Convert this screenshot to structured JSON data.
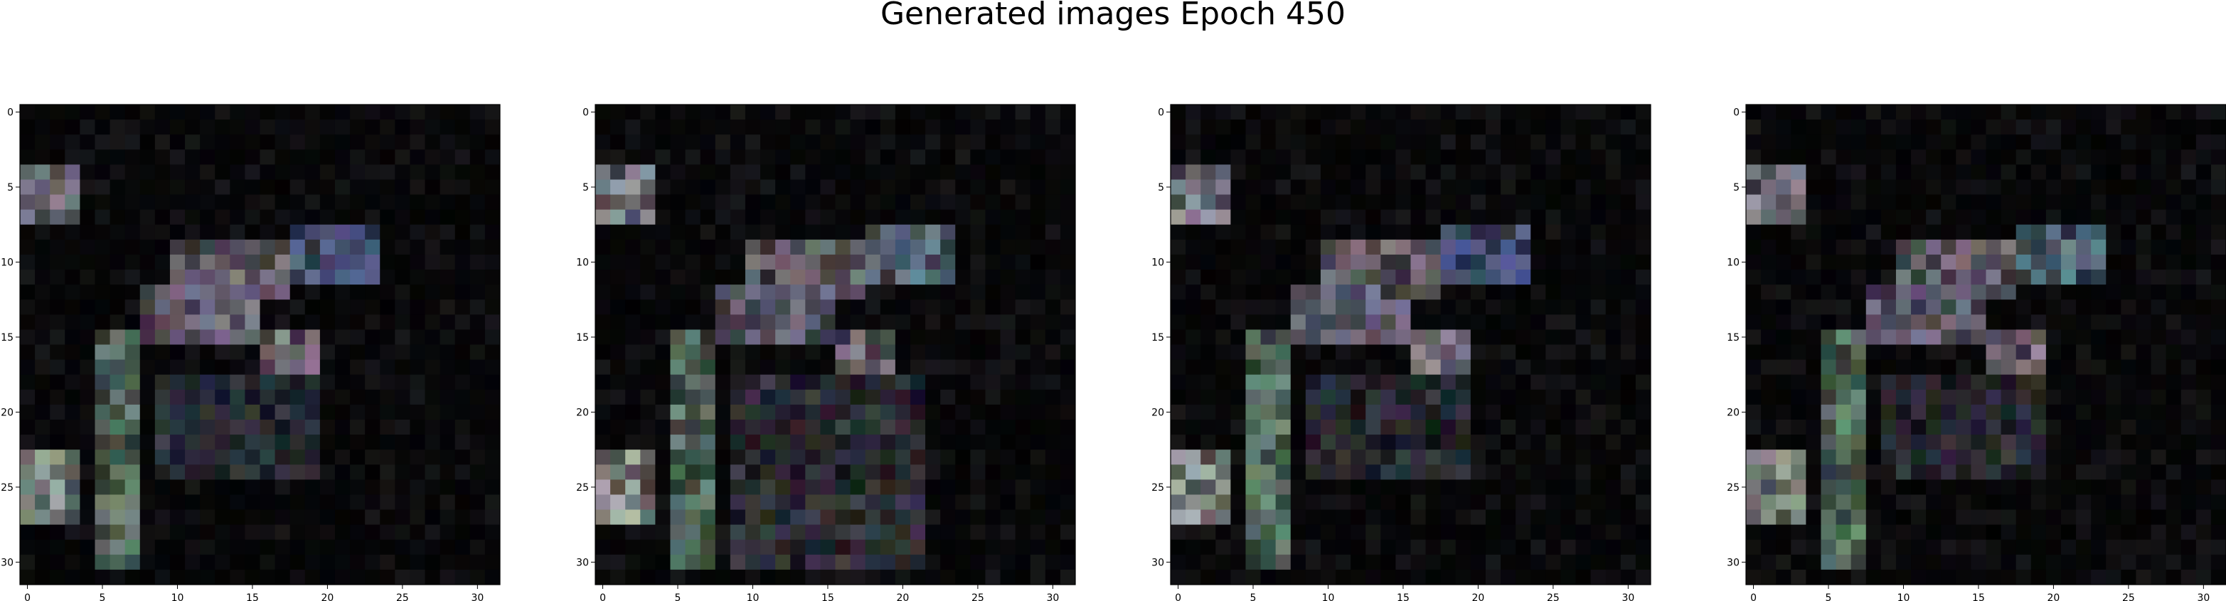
{
  "figure": {
    "title": "Generated images Epoch 450"
  },
  "colors": {
    "background": "#000000",
    "figure_background": "#ffffff",
    "axis": "#000000"
  },
  "chart_data": [
    {
      "type": "heatmap",
      "grid": [
        32,
        32
      ],
      "x_ticks": [
        "0",
        "5",
        "10",
        "15",
        "20",
        "25",
        "30"
      ],
      "y_ticks": [
        "0",
        "5",
        "10",
        "15",
        "20",
        "25",
        "30"
      ],
      "xlim": [
        -0.5,
        31.5
      ],
      "ylim": [
        31.5,
        -0.5
      ],
      "grid_lines": false,
      "bright_regions": [
        {
          "rows": [
            4,
            7
          ],
          "cols": [
            0,
            3
          ],
          "color": "#7d7a88"
        },
        {
          "rows": [
            9,
            12
          ],
          "cols": [
            10,
            17
          ],
          "color": "#6b6670"
        },
        {
          "rows": [
            8,
            11
          ],
          "cols": [
            18,
            23
          ],
          "color": "#4f5c82"
        },
        {
          "rows": [
            12,
            15
          ],
          "cols": [
            8,
            15
          ],
          "color": "#6a6578"
        },
        {
          "rows": [
            15,
            19
          ],
          "cols": [
            16,
            19
          ],
          "color": "#7f7783"
        },
        {
          "rows": [
            15,
            30
          ],
          "cols": [
            5,
            7
          ],
          "color": "#5e7a6a"
        },
        {
          "rows": [
            23,
            27
          ],
          "cols": [
            0,
            3
          ],
          "color": "#8d958f"
        },
        {
          "rows": [
            18,
            24
          ],
          "cols": [
            9,
            19
          ],
          "color": "#2d2f3a"
        }
      ]
    },
    {
      "type": "heatmap",
      "grid": [
        32,
        32
      ],
      "x_ticks": [
        "0",
        "5",
        "10",
        "15",
        "20",
        "25",
        "30"
      ],
      "y_ticks": [
        "0",
        "5",
        "10",
        "15",
        "20",
        "25",
        "30"
      ],
      "xlim": [
        -0.5,
        31.5
      ],
      "ylim": [
        31.5,
        -0.5
      ],
      "grid_lines": false,
      "bright_regions": [
        {
          "rows": [
            4,
            7
          ],
          "cols": [
            0,
            3
          ],
          "color": "#7d7a88"
        },
        {
          "rows": [
            9,
            12
          ],
          "cols": [
            10,
            17
          ],
          "color": "#6b6670"
        },
        {
          "rows": [
            8,
            11
          ],
          "cols": [
            18,
            23
          ],
          "color": "#5a6e7c"
        },
        {
          "rows": [
            12,
            15
          ],
          "cols": [
            8,
            15
          ],
          "color": "#6a6578"
        },
        {
          "rows": [
            15,
            19
          ],
          "cols": [
            16,
            19
          ],
          "color": "#7f7783"
        },
        {
          "rows": [
            15,
            30
          ],
          "cols": [
            5,
            7
          ],
          "color": "#5e7a6a"
        },
        {
          "rows": [
            23,
            27
          ],
          "cols": [
            0,
            3
          ],
          "color": "#8d958f"
        },
        {
          "rows": [
            18,
            30
          ],
          "cols": [
            9,
            21
          ],
          "color": "#33323c"
        }
      ]
    },
    {
      "type": "heatmap",
      "grid": [
        32,
        32
      ],
      "x_ticks": [
        "0",
        "5",
        "10",
        "15",
        "20",
        "25",
        "30"
      ],
      "y_ticks": [
        "0",
        "5",
        "10",
        "15",
        "20",
        "25",
        "30"
      ],
      "xlim": [
        -0.5,
        31.5
      ],
      "ylim": [
        31.5,
        -0.5
      ],
      "grid_lines": false,
      "bright_regions": [
        {
          "rows": [
            4,
            7
          ],
          "cols": [
            0,
            3
          ],
          "color": "#7d7a88"
        },
        {
          "rows": [
            9,
            12
          ],
          "cols": [
            10,
            17
          ],
          "color": "#6b6670"
        },
        {
          "rows": [
            8,
            11
          ],
          "cols": [
            18,
            23
          ],
          "color": "#4f5c82"
        },
        {
          "rows": [
            12,
            15
          ],
          "cols": [
            8,
            15
          ],
          "color": "#6a6578"
        },
        {
          "rows": [
            15,
            19
          ],
          "cols": [
            16,
            19
          ],
          "color": "#7f7783"
        },
        {
          "rows": [
            15,
            30
          ],
          "cols": [
            5,
            7
          ],
          "color": "#5e7a6a"
        },
        {
          "rows": [
            23,
            27
          ],
          "cols": [
            0,
            3
          ],
          "color": "#8d958f"
        },
        {
          "rows": [
            18,
            24
          ],
          "cols": [
            9,
            19
          ],
          "color": "#2d2f3a"
        }
      ]
    },
    {
      "type": "heatmap",
      "grid": [
        32,
        32
      ],
      "x_ticks": [
        "0",
        "5",
        "10",
        "15",
        "20",
        "25",
        "30"
      ],
      "y_ticks": [
        "0",
        "5",
        "10",
        "15",
        "20",
        "25",
        "30"
      ],
      "xlim": [
        -0.5,
        31.5
      ],
      "ylim": [
        31.5,
        -0.5
      ],
      "grid_lines": false,
      "bright_regions": [
        {
          "rows": [
            4,
            7
          ],
          "cols": [
            0,
            3
          ],
          "color": "#7d7a88"
        },
        {
          "rows": [
            9,
            12
          ],
          "cols": [
            10,
            17
          ],
          "color": "#6b6670"
        },
        {
          "rows": [
            8,
            11
          ],
          "cols": [
            18,
            23
          ],
          "color": "#55707a"
        },
        {
          "rows": [
            12,
            15
          ],
          "cols": [
            8,
            15
          ],
          "color": "#6a6578"
        },
        {
          "rows": [
            15,
            19
          ],
          "cols": [
            16,
            19
          ],
          "color": "#7f7783"
        },
        {
          "rows": [
            15,
            30
          ],
          "cols": [
            5,
            7
          ],
          "color": "#5e7a6a"
        },
        {
          "rows": [
            23,
            27
          ],
          "cols": [
            0,
            3
          ],
          "color": "#8d958f"
        },
        {
          "rows": [
            18,
            24
          ],
          "cols": [
            9,
            19
          ],
          "color": "#2d2f3a"
        }
      ]
    }
  ]
}
